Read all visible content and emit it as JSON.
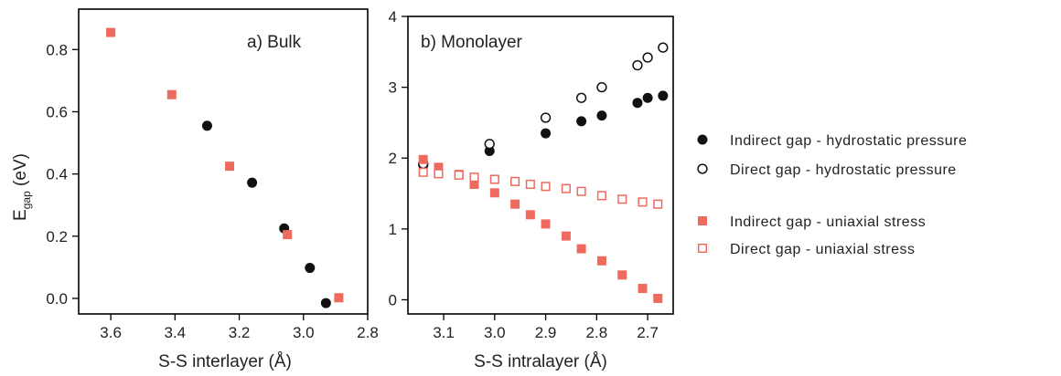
{
  "colors": {
    "hydrostatic": "#111111",
    "uniaxial": "#ee6a5e",
    "axis": "#000000"
  },
  "chart_data": [
    {
      "type": "scatter",
      "panel_label": "a) Bulk",
      "xlabel": "S-S interlayer (Å)",
      "ylabel_main": "E",
      "ylabel_sub": "gap",
      "ylabel_tail": " (eV)",
      "xlim": [
        3.7,
        2.8
      ],
      "ylim": [
        -0.05,
        0.93
      ],
      "x_reversed": true,
      "xticks": [
        3.6,
        3.4,
        3.2,
        3.0,
        2.8
      ],
      "xtick_labels": [
        "3.6",
        "3.4",
        "3.2",
        "3.0",
        "2.8"
      ],
      "yticks": [
        0.0,
        0.2,
        0.4,
        0.6,
        0.8
      ],
      "ytick_labels": [
        "0.0",
        "0.2",
        "0.4",
        "0.6",
        "0.8"
      ],
      "series": [
        {
          "name": "Indirect gap - hydrostatic pressure",
          "marker": "filled-circle",
          "x": [
            3.3,
            3.16,
            3.06,
            2.98,
            2.93
          ],
          "y": [
            0.555,
            0.372,
            0.225,
            0.098,
            -0.015
          ]
        },
        {
          "name": "Indirect gap - uniaxial stress",
          "marker": "filled-square",
          "x": [
            3.6,
            3.41,
            3.23,
            3.05,
            2.89
          ],
          "y": [
            0.855,
            0.655,
            0.425,
            0.205,
            0.002
          ]
        }
      ]
    },
    {
      "type": "scatter",
      "panel_label": "b) Monolayer",
      "xlabel": "S-S intralayer (Å)",
      "xlim": [
        3.17,
        2.65
      ],
      "ylim": [
        -0.2,
        4.0
      ],
      "x_reversed": true,
      "xticks": [
        3.1,
        3.0,
        2.9,
        2.8,
        2.7
      ],
      "xtick_labels": [
        "3.1",
        "3.0",
        "2.9",
        "2.8",
        "2.7"
      ],
      "yticks": [
        0,
        1,
        2,
        3,
        4
      ],
      "ytick_labels": [
        "0",
        "1",
        "2",
        "3",
        "4"
      ],
      "series": [
        {
          "name": "Indirect gap - hydrostatic pressure",
          "marker": "filled-circle",
          "x": [
            3.14,
            3.01,
            2.9,
            2.83,
            2.79,
            2.72,
            2.7,
            2.67
          ],
          "y": [
            1.9,
            2.1,
            2.35,
            2.52,
            2.6,
            2.78,
            2.85,
            2.88
          ]
        },
        {
          "name": "Direct gap - hydrostatic pressure",
          "marker": "open-circle",
          "x": [
            3.14,
            3.01,
            2.9,
            2.83,
            2.79,
            2.72,
            2.7,
            2.67
          ],
          "y": [
            1.92,
            2.2,
            2.57,
            2.85,
            3.0,
            3.31,
            3.42,
            3.56
          ]
        },
        {
          "name": "Indirect gap - uniaxial stress",
          "marker": "filled-square",
          "x": [
            3.14,
            3.11,
            3.07,
            3.04,
            3.0,
            2.96,
            2.93,
            2.9,
            2.86,
            2.83,
            2.79,
            2.75,
            2.71,
            2.68
          ],
          "y": [
            1.98,
            1.87,
            1.77,
            1.63,
            1.51,
            1.35,
            1.2,
            1.07,
            0.9,
            0.72,
            0.55,
            0.35,
            0.16,
            0.02
          ]
        },
        {
          "name": "Direct gap - uniaxial stress",
          "marker": "open-square",
          "x": [
            3.14,
            3.11,
            3.07,
            3.04,
            3.0,
            2.96,
            2.93,
            2.9,
            2.86,
            2.83,
            2.79,
            2.75,
            2.71,
            2.68
          ],
          "y": [
            1.8,
            1.78,
            1.76,
            1.73,
            1.7,
            1.67,
            1.63,
            1.6,
            1.57,
            1.53,
            1.47,
            1.42,
            1.38,
            1.35
          ]
        }
      ]
    }
  ],
  "legend": {
    "placement": "right",
    "entries": [
      {
        "label": "Indirect gap - hydrostatic pressure",
        "marker": "filled-circle"
      },
      {
        "label": "Direct gap - hydrostatic pressure",
        "marker": "open-circle"
      },
      {
        "label": "Indirect gap - uniaxial stress",
        "marker": "filled-square"
      },
      {
        "label": "Direct gap - uniaxial stress",
        "marker": "open-square"
      }
    ]
  }
}
